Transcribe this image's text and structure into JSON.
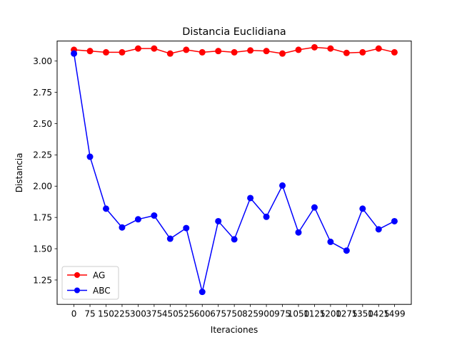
{
  "chart_data": {
    "type": "line",
    "title": "Distancia Euclidiana",
    "xlabel": "Iteraciones",
    "ylabel": "Distancia",
    "x": [
      0,
      75,
      150,
      225,
      300,
      375,
      450,
      525,
      600,
      675,
      750,
      825,
      900,
      975,
      1050,
      1125,
      1200,
      1275,
      1350,
      1425,
      1499
    ],
    "x_tick_labels": [
      "0",
      "75",
      "150",
      "225",
      "300",
      "375",
      "450",
      "525",
      "600",
      "675",
      "750",
      "825",
      "900",
      "975",
      "1050",
      "1125",
      "1200",
      "1275",
      "1350",
      "1425",
      "1499"
    ],
    "y_ticks": [
      1.25,
      1.5,
      1.75,
      2.0,
      2.25,
      2.5,
      2.75,
      3.0
    ],
    "y_tick_labels": [
      "1.25",
      "1.50",
      "1.75",
      "2.00",
      "2.25",
      "2.50",
      "2.75",
      "3.00"
    ],
    "ylim": [
      1.055,
      3.16
    ],
    "series": [
      {
        "name": "AG",
        "color": "#ff0000",
        "marker": "circle",
        "values": [
          3.09,
          3.08,
          3.07,
          3.07,
          3.1,
          3.1,
          3.06,
          3.09,
          3.07,
          3.08,
          3.07,
          3.085,
          3.08,
          3.06,
          3.09,
          3.11,
          3.1,
          3.065,
          3.07,
          3.1,
          3.07
        ]
      },
      {
        "name": "ABC",
        "color": "#0000ff",
        "marker": "circle",
        "values": [
          3.06,
          2.235,
          1.82,
          1.67,
          1.735,
          1.765,
          1.58,
          1.665,
          1.155,
          1.72,
          1.575,
          1.905,
          1.755,
          2.005,
          1.63,
          1.83,
          1.555,
          1.485,
          1.82,
          1.655,
          1.72
        ]
      }
    ],
    "grid": false,
    "legend_position": "lower-left"
  }
}
